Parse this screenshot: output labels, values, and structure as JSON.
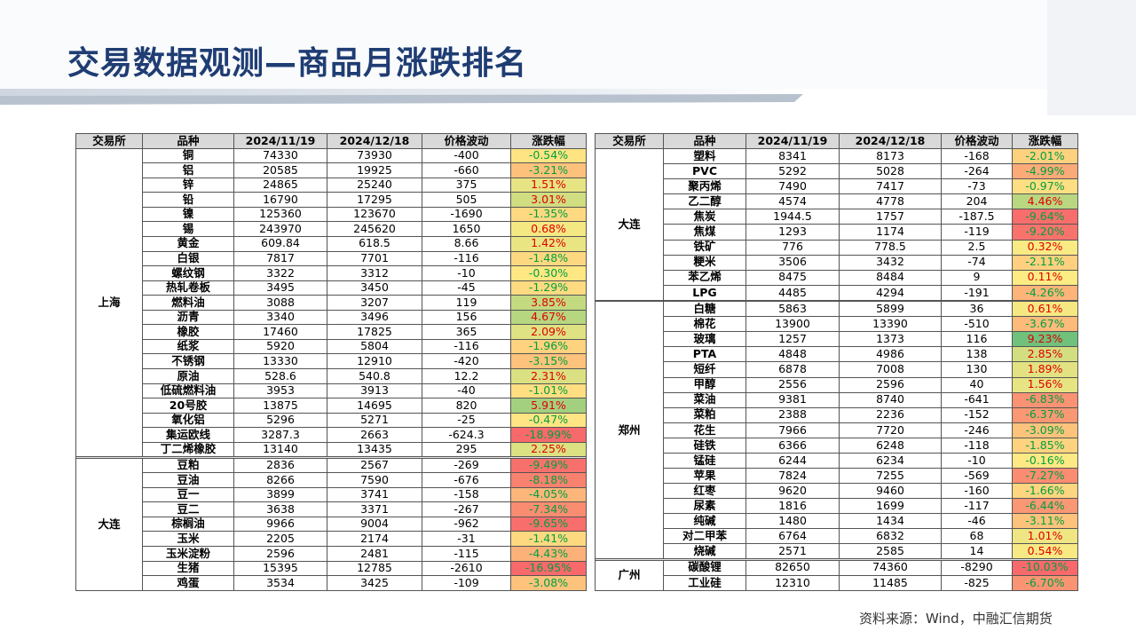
{
  "header": {
    "title": "交易数据观测—商品月涨跌排名"
  },
  "left": {
    "header": [
      "交易所",
      "品种",
      "2024/11/19",
      "2024/12/18",
      "价格波动",
      "涨跌幅"
    ],
    "groups": [
      {
        "exchange": "上海",
        "rows": [
          [
            "铜",
            "74330",
            "73930",
            "-400",
            "-0.54%"
          ],
          [
            "铝",
            "20585",
            "19925",
            "-660",
            "-3.21%"
          ],
          [
            "锌",
            "24865",
            "25240",
            "375",
            "1.51%"
          ],
          [
            "铅",
            "16790",
            "17295",
            "505",
            "3.01%"
          ],
          [
            "镍",
            "125360",
            "123670",
            "-1690",
            "-1.35%"
          ],
          [
            "锡",
            "243970",
            "245620",
            "1650",
            "0.68%"
          ],
          [
            "黄金",
            "609.84",
            "618.5",
            "8.66",
            "1.42%"
          ],
          [
            "白银",
            "7817",
            "7701",
            "-116",
            "-1.48%"
          ],
          [
            "螺纹钢",
            "3322",
            "3312",
            "-10",
            "-0.30%"
          ],
          [
            "热轧卷板",
            "3495",
            "3450",
            "-45",
            "-1.29%"
          ],
          [
            "燃料油",
            "3088",
            "3207",
            "119",
            "3.85%"
          ],
          [
            "沥青",
            "3340",
            "3496",
            "156",
            "4.67%"
          ],
          [
            "橡胶",
            "17460",
            "17825",
            "365",
            "2.09%"
          ],
          [
            "纸浆",
            "5920",
            "5804",
            "-116",
            "-1.96%"
          ],
          [
            "不锈钢",
            "13330",
            "12910",
            "-420",
            "-3.15%"
          ],
          [
            "原油",
            "528.6",
            "540.8",
            "12.2",
            "2.31%"
          ],
          [
            "低硫燃料油",
            "3953",
            "3913",
            "-40",
            "-1.01%"
          ],
          [
            "20号胶",
            "13875",
            "14695",
            "820",
            "5.91%"
          ],
          [
            "氧化铝",
            "5296",
            "5271",
            "-25",
            "-0.47%"
          ],
          [
            "集运欧线",
            "3287.3",
            "2663",
            "-624.3",
            "-18.99%"
          ],
          [
            "丁二烯橡胶",
            "13140",
            "13435",
            "295",
            "2.25%"
          ]
        ]
      },
      {
        "exchange": "大连",
        "rows": [
          [
            "豆粕",
            "2836",
            "2567",
            "-269",
            "-9.49%"
          ],
          [
            "豆油",
            "8266",
            "7590",
            "-676",
            "-8.18%"
          ],
          [
            "豆一",
            "3899",
            "3741",
            "-158",
            "-4.05%"
          ],
          [
            "豆二",
            "3638",
            "3371",
            "-267",
            "-7.34%"
          ],
          [
            "棕榈油",
            "9966",
            "9004",
            "-962",
            "-9.65%"
          ],
          [
            "玉米",
            "2205",
            "2174",
            "-31",
            "-1.41%"
          ],
          [
            "玉米淀粉",
            "2596",
            "2481",
            "-115",
            "-4.43%"
          ],
          [
            "生猪",
            "15395",
            "12785",
            "-2610",
            "-16.95%"
          ],
          [
            "鸡蛋",
            "3534",
            "3425",
            "-109",
            "-3.08%"
          ]
        ]
      }
    ]
  },
  "right": {
    "header": [
      "交易所",
      "品种",
      "2024/11/19",
      "2024/12/18",
      "价格波动",
      "涨跌幅"
    ],
    "groups": [
      {
        "exchange": "大连",
        "rows": [
          [
            "塑料",
            "8341",
            "8173",
            "-168",
            "-2.01%"
          ],
          [
            "PVC",
            "5292",
            "5028",
            "-264",
            "-4.99%"
          ],
          [
            "聚丙烯",
            "7490",
            "7417",
            "-73",
            "-0.97%"
          ],
          [
            "乙二醇",
            "4574",
            "4778",
            "204",
            "4.46%"
          ],
          [
            "焦炭",
            "1944.5",
            "1757",
            "-187.5",
            "-9.64%"
          ],
          [
            "焦煤",
            "1293",
            "1174",
            "-119",
            "-9.20%"
          ],
          [
            "铁矿",
            "776",
            "778.5",
            "2.5",
            "0.32%"
          ],
          [
            "粳米",
            "3506",
            "3432",
            "-74",
            "-2.11%"
          ],
          [
            "苯乙烯",
            "8475",
            "8484",
            "9",
            "0.11%"
          ],
          [
            "LPG",
            "4485",
            "4294",
            "-191",
            "-4.26%"
          ]
        ]
      },
      {
        "exchange": "郑州",
        "rows": [
          [
            "白糖",
            "5863",
            "5899",
            "36",
            "0.61%"
          ],
          [
            "棉花",
            "13900",
            "13390",
            "-510",
            "-3.67%"
          ],
          [
            "玻璃",
            "1257",
            "1373",
            "116",
            "9.23%"
          ],
          [
            "PTA",
            "4848",
            "4986",
            "138",
            "2.85%"
          ],
          [
            "短纤",
            "6878",
            "7008",
            "130",
            "1.89%"
          ],
          [
            "甲醇",
            "2556",
            "2596",
            "40",
            "1.56%"
          ],
          [
            "菜油",
            "9381",
            "8740",
            "-641",
            "-6.83%"
          ],
          [
            "菜粕",
            "2388",
            "2236",
            "-152",
            "-6.37%"
          ],
          [
            "花生",
            "7966",
            "7720",
            "-246",
            "-3.09%"
          ],
          [
            "硅铁",
            "6366",
            "6248",
            "-118",
            "-1.85%"
          ],
          [
            "锰硅",
            "6244",
            "6234",
            "-10",
            "-0.16%"
          ],
          [
            "苹果",
            "7824",
            "7255",
            "-569",
            "-7.27%"
          ],
          [
            "红枣",
            "9620",
            "9460",
            "-160",
            "-1.66%"
          ],
          [
            "尿素",
            "1816",
            "1699",
            "-117",
            "-6.44%"
          ],
          [
            "纯碱",
            "1480",
            "1434",
            "-46",
            "-3.11%"
          ],
          [
            "对二甲苯",
            "6764",
            "6832",
            "68",
            "1.01%"
          ],
          [
            "烧碱",
            "2571",
            "2585",
            "14",
            "0.54%"
          ]
        ]
      },
      {
        "exchange": "广州",
        "rows": [
          [
            "碳酸锂",
            "82650",
            "74360",
            "-8290",
            "-10.03%"
          ],
          [
            "工业硅",
            "12310",
            "11485",
            "-825",
            "-6.70%"
          ]
        ]
      }
    ]
  },
  "footer": {
    "source": "资料来源：Wind，中融汇信期货"
  }
}
